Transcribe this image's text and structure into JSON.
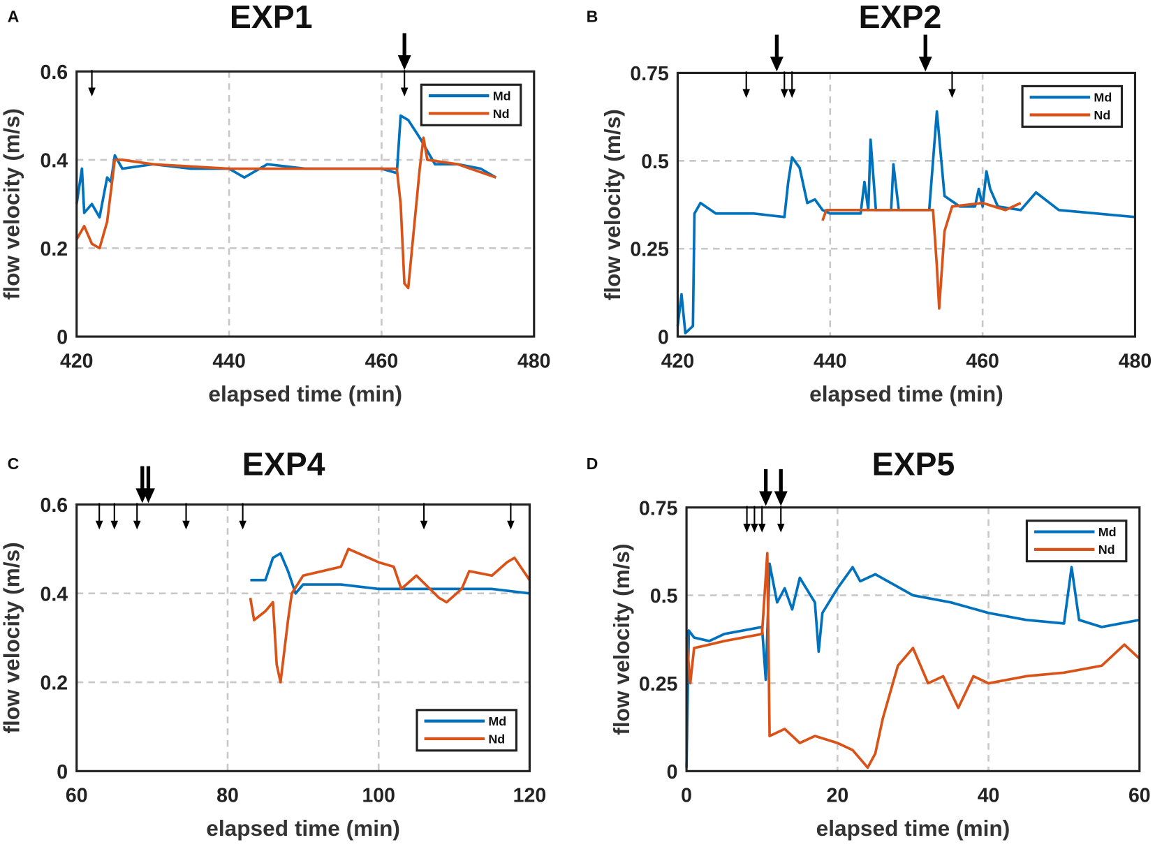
{
  "colors": {
    "Md": "#0072BD",
    "Nd": "#D95319"
  },
  "chart_data": [
    {
      "type": "line",
      "panel": "A",
      "title": "EXP1",
      "xlabel": "elapsed time (min)",
      "ylabel": "flow velocity (m/s)",
      "xlim": [
        420,
        480
      ],
      "ylim": [
        0,
        0.6
      ],
      "xticks": [
        "420",
        "440",
        "460",
        "480"
      ],
      "xtickvals": [
        420,
        440,
        460,
        480
      ],
      "yticks": [
        "0",
        "0.2",
        "0.4",
        "0.6"
      ],
      "ytickvals": [
        0,
        0.2,
        0.4,
        0.6
      ],
      "grid": true,
      "legend": "top-right",
      "legend_entries": [
        "Md",
        "Nd"
      ],
      "arrows_small": [
        422,
        463
      ],
      "arrows_big": [
        463
      ],
      "series": [
        {
          "name": "Md",
          "x": [
            420,
            420.7,
            421,
            422,
            423,
            424,
            424.5,
            425,
            426,
            430,
            435,
            440,
            442,
            445,
            450,
            455,
            460,
            462,
            462.5,
            463.5,
            465,
            467,
            470,
            473,
            475
          ],
          "y": [
            0.3,
            0.38,
            0.28,
            0.3,
            0.27,
            0.36,
            0.35,
            0.41,
            0.38,
            0.39,
            0.38,
            0.38,
            0.36,
            0.39,
            0.38,
            0.38,
            0.38,
            0.37,
            0.5,
            0.49,
            0.45,
            0.39,
            0.39,
            0.38,
            0.36
          ]
        },
        {
          "name": "Nd",
          "x": [
            420,
            421,
            422,
            423,
            424,
            425,
            426,
            430,
            440,
            450,
            460,
            462,
            462.5,
            463,
            463.5,
            464,
            465,
            465.5,
            466,
            470,
            475
          ],
          "y": [
            0.22,
            0.25,
            0.21,
            0.2,
            0.26,
            0.4,
            0.4,
            0.39,
            0.38,
            0.38,
            0.38,
            0.38,
            0.3,
            0.12,
            0.11,
            0.2,
            0.38,
            0.45,
            0.4,
            0.39,
            0.36
          ]
        }
      ]
    },
    {
      "type": "line",
      "panel": "B",
      "title": "EXP2",
      "xlabel": "elapsed time (min)",
      "ylabel": "flow velocity (m/s)",
      "xlim": [
        420,
        480
      ],
      "ylim": [
        0,
        0.75
      ],
      "xticks": [
        "420",
        "440",
        "460",
        "480"
      ],
      "xtickvals": [
        420,
        440,
        460,
        480
      ],
      "yticks": [
        "0",
        "0.25",
        "0.5",
        "0.75"
      ],
      "ytickvals": [
        0,
        0.25,
        0.5,
        0.75
      ],
      "grid": true,
      "legend": "top-right",
      "legend_entries": [
        "Md",
        "Nd"
      ],
      "arrows_small": [
        429,
        434,
        435,
        456
      ],
      "arrows_big": [
        433,
        452.5
      ],
      "series": [
        {
          "name": "Md",
          "x": [
            420,
            420.5,
            421,
            422,
            422.2,
            423,
            425,
            430,
            434,
            434.5,
            435,
            436,
            437,
            438,
            439,
            440,
            444,
            444.5,
            445,
            445.3,
            446,
            448,
            448.3,
            449,
            453,
            454,
            455,
            457,
            459,
            459.5,
            460,
            460.5,
            461,
            462,
            465,
            467,
            470,
            475,
            480
          ],
          "y": [
            0.03,
            0.12,
            0.01,
            0.03,
            0.35,
            0.38,
            0.35,
            0.35,
            0.34,
            0.44,
            0.51,
            0.48,
            0.38,
            0.39,
            0.36,
            0.35,
            0.35,
            0.44,
            0.36,
            0.56,
            0.36,
            0.36,
            0.49,
            0.36,
            0.36,
            0.64,
            0.4,
            0.37,
            0.37,
            0.42,
            0.37,
            0.47,
            0.42,
            0.37,
            0.36,
            0.41,
            0.36,
            0.35,
            0.34
          ]
        },
        {
          "name": "Nd",
          "x": [
            439,
            439.5,
            445,
            450,
            453.5,
            454,
            454.3,
            455,
            456,
            460,
            463,
            465
          ],
          "y": [
            0.33,
            0.36,
            0.36,
            0.36,
            0.36,
            0.2,
            0.08,
            0.3,
            0.37,
            0.38,
            0.36,
            0.38
          ]
        }
      ]
    },
    {
      "type": "line",
      "panel": "C",
      "title": "EXP4",
      "xlabel": "elapsed time (min)",
      "ylabel": "flow velocity (m/s)",
      "xlim": [
        60,
        120
      ],
      "ylim": [
        0,
        0.6
      ],
      "xticks": [
        "60",
        "80",
        "100",
        "120"
      ],
      "xtickvals": [
        60,
        80,
        100,
        120
      ],
      "yticks": [
        "0",
        "0.2",
        "0.4",
        "0.6"
      ],
      "ytickvals": [
        0,
        0.2,
        0.4,
        0.6
      ],
      "grid": true,
      "legend": "bottom-right",
      "legend_entries": [
        "Md",
        "Nd"
      ],
      "arrows_small": [
        63,
        65,
        68,
        74.5,
        82,
        106,
        117.5
      ],
      "arrows_big": [
        68.7,
        69.5
      ],
      "series": [
        {
          "name": "Md",
          "x": [
            83,
            85,
            86,
            87,
            88,
            89,
            90,
            95,
            100,
            105,
            110,
            115,
            120
          ],
          "y": [
            0.43,
            0.43,
            0.48,
            0.49,
            0.45,
            0.4,
            0.42,
            0.42,
            0.41,
            0.41,
            0.41,
            0.41,
            0.4
          ]
        },
        {
          "name": "Nd",
          "x": [
            83,
            83.5,
            85,
            86,
            86.5,
            87,
            88,
            88.5,
            90,
            95,
            96,
            100,
            102,
            103,
            105,
            108,
            109,
            111,
            112,
            115,
            117,
            118,
            120
          ],
          "y": [
            0.39,
            0.34,
            0.36,
            0.38,
            0.24,
            0.2,
            0.34,
            0.4,
            0.44,
            0.46,
            0.5,
            0.47,
            0.46,
            0.41,
            0.44,
            0.39,
            0.38,
            0.41,
            0.45,
            0.44,
            0.47,
            0.48,
            0.43
          ]
        }
      ]
    },
    {
      "type": "line",
      "panel": "D",
      "title": "EXP5",
      "xlabel": "elapsed time (min)",
      "ylabel": "flow velocity (m/s)",
      "xlim": [
        0,
        60
      ],
      "ylim": [
        0,
        0.75
      ],
      "xticks": [
        "0",
        "20",
        "40",
        "60"
      ],
      "xtickvals": [
        0,
        20,
        40,
        60
      ],
      "yticks": [
        "0",
        "0.25",
        "0.5",
        "0.75"
      ],
      "ytickvals": [
        0,
        0.25,
        0.5,
        0.75
      ],
      "grid": true,
      "legend": "top-right",
      "legend_entries": [
        "Md",
        "Nd"
      ],
      "arrows_small": [
        8,
        9,
        10,
        12.5
      ],
      "arrows_big": [
        10.5,
        12.5
      ],
      "series": [
        {
          "name": "Md",
          "x": [
            0,
            0.3,
            1,
            3,
            5,
            10,
            10.5,
            11,
            12,
            13,
            14,
            15,
            17,
            17.5,
            18,
            20,
            22,
            23,
            25,
            30,
            35,
            40,
            45,
            50,
            51,
            52,
            55,
            60
          ],
          "y": [
            0.01,
            0.4,
            0.38,
            0.37,
            0.39,
            0.41,
            0.26,
            0.59,
            0.48,
            0.52,
            0.46,
            0.55,
            0.48,
            0.34,
            0.45,
            0.52,
            0.58,
            0.54,
            0.56,
            0.5,
            0.48,
            0.45,
            0.43,
            0.42,
            0.58,
            0.43,
            0.41,
            0.43
          ]
        },
        {
          "name": "Nd",
          "x": [
            0,
            0.5,
            1,
            3,
            5,
            10,
            10.7,
            11,
            13,
            15,
            17,
            20,
            22,
            24,
            25,
            26,
            28,
            30,
            32,
            34,
            36,
            38,
            40,
            45,
            50,
            55,
            58,
            60
          ],
          "y": [
            0.38,
            0.25,
            0.35,
            0.36,
            0.37,
            0.39,
            0.62,
            0.1,
            0.12,
            0.08,
            0.1,
            0.08,
            0.06,
            0.01,
            0.05,
            0.15,
            0.3,
            0.35,
            0.25,
            0.27,
            0.18,
            0.27,
            0.25,
            0.27,
            0.28,
            0.3,
            0.36,
            0.32
          ]
        }
      ]
    }
  ]
}
